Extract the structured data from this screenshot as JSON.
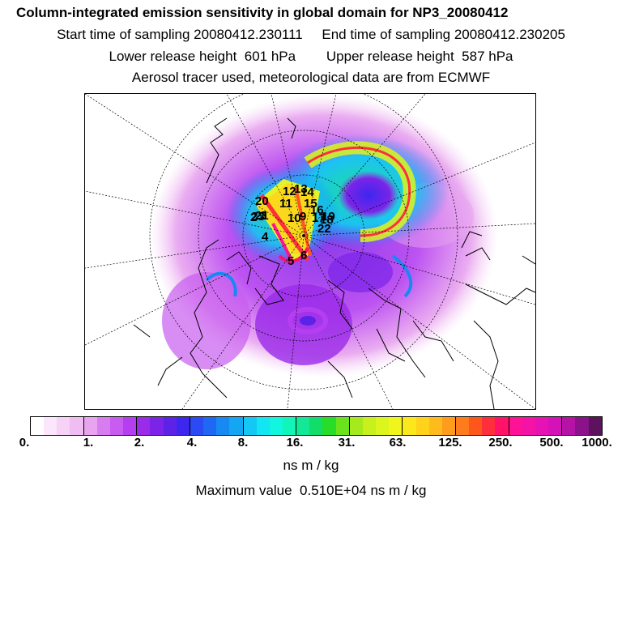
{
  "header": {
    "title": "Column-integrated emission sensitivity in global domain for NP3_20080412",
    "start_label": "Start time of sampling 20080412.230111",
    "end_label": "End time of sampling 20080412.230205",
    "lower_label": "Lower release height  601 hPa",
    "upper_label": "Upper release height  587 hPa",
    "tracer_note": "Aerosol tracer used, meteorological data are from ECMWF"
  },
  "map": {
    "projection": "polar stereographic (Arctic)",
    "point_labels": [
      "1",
      "2",
      "3",
      "4",
      "5",
      "6",
      "9",
      "10",
      "11",
      "12",
      "13",
      "14",
      "15",
      "16",
      "17",
      "18",
      "19",
      "20",
      "21",
      "22",
      "23"
    ]
  },
  "colorbar": {
    "colors": [
      "#ffffff",
      "#fbe6fb",
      "#f6d2f6",
      "#f0bdf3",
      "#e8a4ef",
      "#d77df0",
      "#c85cf0",
      "#b53ff0",
      "#9a2be8",
      "#7b24e8",
      "#5c22e8",
      "#3d26ee",
      "#2c4af3",
      "#1f68f3",
      "#1889f3",
      "#12a6f3",
      "#14c8f3",
      "#12e6f3",
      "#12f5df",
      "#12f5b8",
      "#12e896",
      "#12dd6a",
      "#28dd28",
      "#6ae21c",
      "#a5ea1c",
      "#c8f01c",
      "#dcf51c",
      "#f0f51c",
      "#fbe81c",
      "#ffd21c",
      "#ffbb1c",
      "#ff9c1c",
      "#ff7c1c",
      "#ff561c",
      "#ff2e3c",
      "#ff1268",
      "#ff1296",
      "#f512a6",
      "#e612b4",
      "#d512b8",
      "#b512a6",
      "#8c128c",
      "#5c125c"
    ],
    "tick_labels": [
      "0.",
      "1.",
      "2.",
      "4.",
      "8.",
      "16.",
      "31.",
      "63.",
      "125.",
      "250.",
      "500.",
      "1000."
    ],
    "units": "ns m / kg"
  },
  "summary": {
    "max_value_text": "Maximum value  0.510E+04 ns m / kg"
  }
}
